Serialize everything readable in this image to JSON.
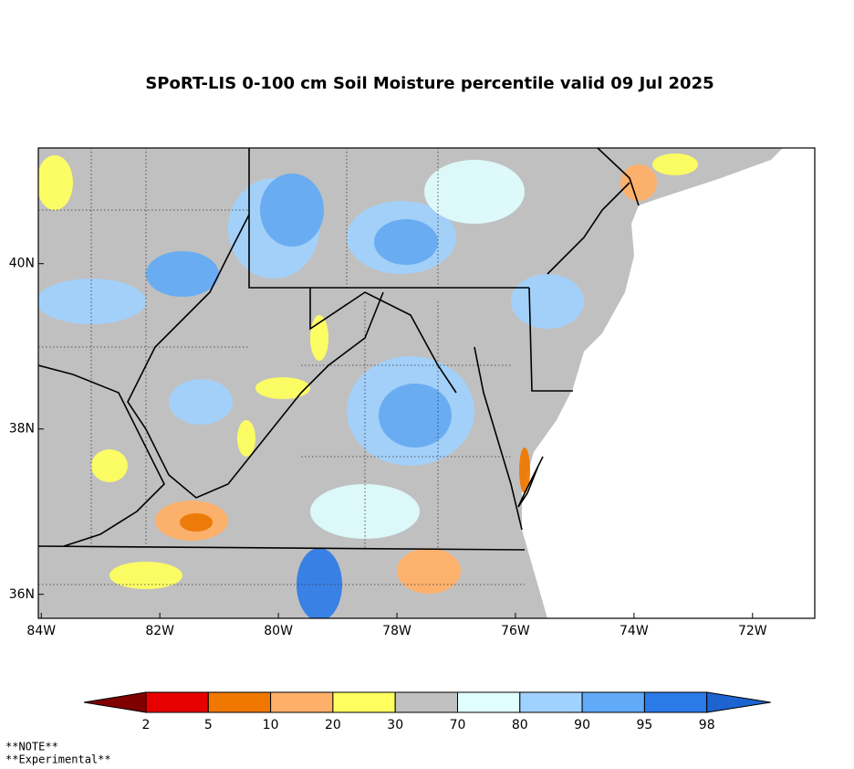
{
  "title": "SPoRT-LIS 0-100 cm Soil Moisture percentile valid 09 Jul 2025",
  "map": {
    "xlim": [
      -84.05,
      -70.95
    ],
    "ylim": [
      35.71,
      41.4
    ],
    "xticks": [
      {
        "value": -84,
        "label": "84W"
      },
      {
        "value": -82,
        "label": "82W"
      },
      {
        "value": -80,
        "label": "80W"
      },
      {
        "value": -78,
        "label": "78W"
      },
      {
        "value": -76,
        "label": "76W"
      },
      {
        "value": -74,
        "label": "74W"
      },
      {
        "value": -72,
        "label": "72W"
      }
    ],
    "yticks": [
      {
        "value": 36,
        "label": "36N"
      },
      {
        "value": 38,
        "label": "38N"
      },
      {
        "value": 40,
        "label": "40N"
      }
    ]
  },
  "colorbar": {
    "colors": [
      "#800000",
      "#e80000",
      "#f07800",
      "#ffb068",
      "#ffff60",
      "#c0c0c0",
      "#e0ffff",
      "#a0d2ff",
      "#60aaf8",
      "#2a7ae8",
      "#1e64d0"
    ],
    "labels": [
      2,
      5,
      10,
      20,
      30,
      70,
      80,
      90,
      95,
      98
    ]
  },
  "notes": [
    "**NOTE**",
    "**Experimental**"
  ]
}
